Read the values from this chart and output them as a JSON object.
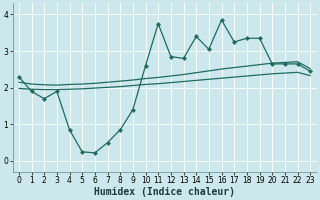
{
  "title": "",
  "xlabel": "Humidex (Indice chaleur)",
  "x_ticks": [
    0,
    1,
    2,
    3,
    4,
    5,
    6,
    7,
    8,
    9,
    10,
    11,
    12,
    13,
    14,
    15,
    16,
    17,
    18,
    19,
    20,
    21,
    22,
    23
  ],
  "ylim": [
    -0.3,
    4.3
  ],
  "xlim": [
    -0.5,
    23.5
  ],
  "bg_color": "#cce8ec",
  "line_color": "#1e6b5e",
  "grid_color": "#ffffff",
  "main_x": [
    0,
    1,
    2,
    3,
    4,
    5,
    6,
    7,
    8,
    9,
    10,
    11,
    12,
    13,
    14,
    15,
    16,
    17,
    18,
    19,
    20,
    21,
    22,
    23
  ],
  "main_y": [
    2.3,
    1.9,
    1.7,
    1.9,
    0.85,
    0.25,
    0.22,
    0.5,
    0.85,
    1.4,
    2.6,
    3.75,
    2.85,
    2.8,
    3.4,
    3.05,
    3.85,
    3.25,
    3.35,
    3.35,
    2.65,
    2.65,
    2.65,
    2.45
  ],
  "upper_x": [
    0,
    1,
    2,
    3,
    4,
    5,
    6,
    7,
    8,
    9,
    10,
    11,
    12,
    13,
    14,
    15,
    16,
    17,
    18,
    19,
    20,
    21,
    22,
    23
  ],
  "upper_y": [
    2.15,
    2.1,
    2.08,
    2.07,
    2.09,
    2.1,
    2.12,
    2.15,
    2.18,
    2.21,
    2.25,
    2.28,
    2.32,
    2.36,
    2.41,
    2.46,
    2.51,
    2.55,
    2.59,
    2.63,
    2.67,
    2.69,
    2.71,
    2.52
  ],
  "lower_x": [
    0,
    1,
    2,
    3,
    4,
    5,
    6,
    7,
    8,
    9,
    10,
    11,
    12,
    13,
    14,
    15,
    16,
    17,
    18,
    19,
    20,
    21,
    22,
    23
  ],
  "lower_y": [
    1.98,
    1.96,
    1.95,
    1.95,
    1.96,
    1.97,
    1.99,
    2.01,
    2.03,
    2.06,
    2.09,
    2.11,
    2.14,
    2.17,
    2.2,
    2.23,
    2.26,
    2.29,
    2.32,
    2.35,
    2.38,
    2.4,
    2.42,
    2.33
  ],
  "tick_fontsize": 5.5,
  "xlabel_fontsize": 7.0,
  "marker_size": 2.2,
  "line_width": 0.9
}
